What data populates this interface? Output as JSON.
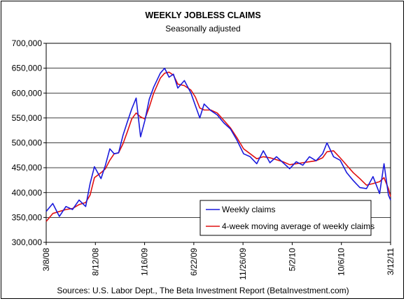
{
  "chart_data": {
    "type": "line",
    "title": "WEEKLY JOBLESS CLAIMS",
    "subtitle": "Seasonally adjusted",
    "source": "Sources: U.S. Labor Dept., The Beta Investment Report (BetaInvestment.com)",
    "ylim": [
      300000,
      700000
    ],
    "yticks": [
      300000,
      350000,
      400000,
      450000,
      500000,
      550000,
      600000,
      650000,
      700000
    ],
    "ytick_labels": [
      "300,000",
      "350,000",
      "400,000",
      "450,000",
      "500,000",
      "550,000",
      "600,000",
      "650,000",
      "700,000"
    ],
    "xlim": [
      "3/8/08",
      "3/12/11"
    ],
    "xtick_labels": [
      "3/8/08",
      "8/12/08",
      "1/16/09",
      "6/22/09",
      "11/26/09",
      "5/2/10",
      "10/6/10",
      "3/12/11"
    ],
    "grid": "horizontal",
    "legend": "bottom-right",
    "colors": {
      "weekly": "#1a1adc",
      "average": "#e01010",
      "gridline": "#000000"
    },
    "series": [
      {
        "name": "Weekly claims",
        "key": "weekly",
        "x": [
          "3/8/08",
          "3/29/08",
          "4/19/08",
          "5/10/08",
          "5/31/08",
          "6/21/08",
          "7/12/08",
          "7/26/08",
          "8/9/08",
          "8/30/08",
          "9/13/08",
          "9/27/08",
          "10/11/08",
          "10/25/08",
          "11/8/08",
          "11/22/08",
          "12/6/08",
          "12/20/08",
          "1/3/09",
          "1/17/09",
          "1/31/09",
          "2/14/09",
          "3/7/09",
          "3/21/09",
          "4/4/09",
          "4/18/09",
          "5/2/09",
          "5/23/09",
          "6/13/09",
          "6/27/09",
          "7/11/09",
          "7/25/09",
          "8/15/09",
          "9/5/09",
          "9/26/09",
          "10/17/09",
          "11/7/09",
          "11/28/09",
          "12/19/09",
          "1/9/10",
          "1/30/10",
          "2/20/10",
          "3/13/10",
          "4/3/10",
          "4/24/10",
          "5/15/10",
          "6/5/10",
          "6/26/10",
          "7/17/10",
          "8/7/10",
          "8/21/10",
          "9/11/10",
          "10/2/10",
          "10/23/10",
          "11/13/10",
          "12/4/10",
          "12/25/10",
          "1/15/11",
          "2/5/11",
          "2/19/11",
          "3/5/11",
          "3/12/11"
        ],
        "values": [
          362000,
          378000,
          352000,
          372000,
          366000,
          385000,
          372000,
          418000,
          452000,
          428000,
          455000,
          488000,
          478000,
          480000,
          515000,
          542000,
          568000,
          590000,
          512000,
          545000,
          588000,
          612000,
          640000,
          650000,
          632000,
          638000,
          610000,
          625000,
          600000,
          575000,
          550000,
          578000,
          565000,
          556000,
          540000,
          528000,
          505000,
          478000,
          472000,
          458000,
          484000,
          460000,
          472000,
          460000,
          448000,
          462000,
          455000,
          472000,
          464000,
          478000,
          500000,
          472000,
          465000,
          440000,
          424000,
          410000,
          408000,
          432000,
          398000,
          458000,
          395000,
          385000
        ]
      },
      {
        "name": "4-week moving average of weekly claims",
        "key": "average",
        "x": [
          "3/8/08",
          "3/29/08",
          "4/19/08",
          "5/10/08",
          "5/31/08",
          "6/21/08",
          "7/12/08",
          "7/26/08",
          "8/9/08",
          "8/30/08",
          "9/13/08",
          "9/27/08",
          "10/11/08",
          "10/25/08",
          "11/8/08",
          "11/22/08",
          "12/6/08",
          "12/20/08",
          "1/3/09",
          "1/17/09",
          "1/31/09",
          "2/14/09",
          "3/7/09",
          "3/21/09",
          "4/4/09",
          "4/18/09",
          "5/2/09",
          "5/23/09",
          "6/13/09",
          "6/27/09",
          "7/11/09",
          "7/25/09",
          "8/15/09",
          "9/5/09",
          "9/26/09",
          "10/17/09",
          "11/7/09",
          "11/28/09",
          "12/19/09",
          "1/9/10",
          "1/30/10",
          "2/20/10",
          "3/13/10",
          "4/3/10",
          "4/24/10",
          "5/15/10",
          "6/5/10",
          "6/26/10",
          "7/17/10",
          "8/7/10",
          "8/21/10",
          "9/11/10",
          "10/2/10",
          "10/23/10",
          "11/13/10",
          "12/4/10",
          "12/25/10",
          "1/15/11",
          "2/5/11",
          "2/19/11",
          "3/5/11",
          "3/12/11"
        ],
        "values": [
          342000,
          358000,
          362000,
          366000,
          368000,
          376000,
          380000,
          395000,
          430000,
          440000,
          448000,
          465000,
          478000,
          480000,
          498000,
          522000,
          548000,
          560000,
          552000,
          548000,
          572000,
          600000,
          630000,
          640000,
          642000,
          636000,
          618000,
          615000,
          606000,
          592000,
          570000,
          566000,
          566000,
          560000,
          545000,
          530000,
          510000,
          488000,
          478000,
          468000,
          472000,
          470000,
          466000,
          462000,
          456000,
          458000,
          460000,
          462000,
          464000,
          470000,
          482000,
          484000,
          470000,
          455000,
          440000,
          428000,
          415000,
          418000,
          422000,
          430000,
          408000,
          392000
        ]
      }
    ]
  }
}
